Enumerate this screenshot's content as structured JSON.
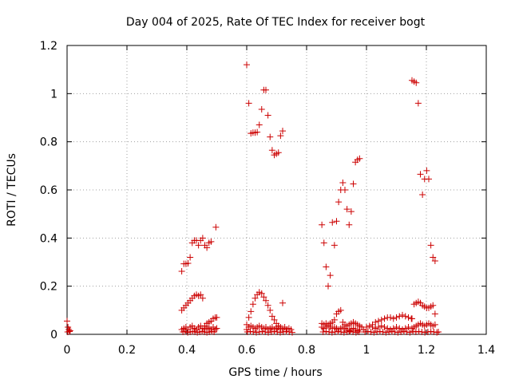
{
  "chart_data": {
    "type": "scatter",
    "title": "Day 004 of 2025, Rate Of TEC Index for receiver bogt",
    "xlabel": "GPS time / hours",
    "ylabel": "ROTI / TECUs",
    "xlim": [
      0,
      1.4
    ],
    "ylim": [
      0,
      1.2
    ],
    "x_ticks": [
      "0",
      "0.2",
      "0.4",
      "0.6",
      "0.8",
      "1",
      "1.2",
      "1.4"
    ],
    "y_ticks": [
      "0",
      "0.2",
      "0.4",
      "0.6",
      "0.8",
      "1",
      "1.2"
    ],
    "grid": true,
    "legend": "none",
    "marker": "plus",
    "colors": {
      "points": "#cc0000"
    },
    "series": [
      {
        "points": [
          [
            0.0,
            0.055
          ],
          [
            0.003,
            0.03
          ],
          [
            0.006,
            0.02
          ],
          [
            0.008,
            0.012
          ],
          [
            0.01,
            0.015
          ],
          [
            0.002,
            0.01
          ],
          [
            0.383,
            0.262
          ],
          [
            0.39,
            0.293
          ],
          [
            0.397,
            0.293
          ],
          [
            0.404,
            0.295
          ],
          [
            0.411,
            0.32
          ],
          [
            0.418,
            0.38
          ],
          [
            0.425,
            0.39
          ],
          [
            0.432,
            0.39
          ],
          [
            0.439,
            0.37
          ],
          [
            0.446,
            0.39
          ],
          [
            0.453,
            0.4
          ],
          [
            0.46,
            0.37
          ],
          [
            0.467,
            0.36
          ],
          [
            0.474,
            0.38
          ],
          [
            0.481,
            0.385
          ],
          [
            0.497,
            0.445
          ],
          [
            0.383,
            0.1
          ],
          [
            0.39,
            0.11
          ],
          [
            0.397,
            0.12
          ],
          [
            0.404,
            0.13
          ],
          [
            0.411,
            0.14
          ],
          [
            0.418,
            0.15
          ],
          [
            0.425,
            0.16
          ],
          [
            0.432,
            0.165
          ],
          [
            0.439,
            0.16
          ],
          [
            0.446,
            0.165
          ],
          [
            0.453,
            0.15
          ],
          [
            0.46,
            0.035
          ],
          [
            0.467,
            0.045
          ],
          [
            0.474,
            0.05
          ],
          [
            0.481,
            0.055
          ],
          [
            0.488,
            0.065
          ],
          [
            0.495,
            0.07
          ],
          [
            0.5,
            0.07
          ],
          [
            0.383,
            0.02
          ],
          [
            0.39,
            0.025
          ],
          [
            0.397,
            0.03
          ],
          [
            0.404,
            0.02
          ],
          [
            0.411,
            0.03
          ],
          [
            0.418,
            0.035
          ],
          [
            0.425,
            0.025
          ],
          [
            0.432,
            0.02
          ],
          [
            0.439,
            0.03
          ],
          [
            0.446,
            0.035
          ],
          [
            0.453,
            0.025
          ],
          [
            0.46,
            0.02
          ],
          [
            0.467,
            0.03
          ],
          [
            0.474,
            0.025
          ],
          [
            0.481,
            0.02
          ],
          [
            0.488,
            0.03
          ],
          [
            0.495,
            0.02
          ],
          [
            0.5,
            0.025
          ],
          [
            0.387,
            0.01
          ],
          [
            0.395,
            0.012
          ],
          [
            0.403,
            0.008
          ],
          [
            0.411,
            0.01
          ],
          [
            0.419,
            0.012
          ],
          [
            0.427,
            0.01
          ],
          [
            0.435,
            0.008
          ],
          [
            0.443,
            0.01
          ],
          [
            0.451,
            0.012
          ],
          [
            0.459,
            0.01
          ],
          [
            0.467,
            0.008
          ],
          [
            0.475,
            0.01
          ],
          [
            0.483,
            0.012
          ],
          [
            0.491,
            0.01
          ],
          [
            0.6,
            1.12
          ],
          [
            0.607,
            0.96
          ],
          [
            0.614,
            0.835
          ],
          [
            0.621,
            0.838
          ],
          [
            0.628,
            0.838
          ],
          [
            0.635,
            0.84
          ],
          [
            0.642,
            0.87
          ],
          [
            0.65,
            0.935
          ],
          [
            0.657,
            1.015
          ],
          [
            0.664,
            1.015
          ],
          [
            0.671,
            0.91
          ],
          [
            0.678,
            0.82
          ],
          [
            0.685,
            0.765
          ],
          [
            0.692,
            0.745
          ],
          [
            0.699,
            0.75
          ],
          [
            0.706,
            0.755
          ],
          [
            0.713,
            0.825
          ],
          [
            0.72,
            0.845
          ],
          [
            0.6,
            0.04
          ],
          [
            0.607,
            0.07
          ],
          [
            0.614,
            0.095
          ],
          [
            0.621,
            0.125
          ],
          [
            0.628,
            0.15
          ],
          [
            0.635,
            0.165
          ],
          [
            0.642,
            0.175
          ],
          [
            0.65,
            0.17
          ],
          [
            0.657,
            0.155
          ],
          [
            0.664,
            0.14
          ],
          [
            0.671,
            0.12
          ],
          [
            0.678,
            0.1
          ],
          [
            0.685,
            0.075
          ],
          [
            0.692,
            0.06
          ],
          [
            0.699,
            0.045
          ],
          [
            0.706,
            0.035
          ],
          [
            0.713,
            0.03
          ],
          [
            0.72,
            0.13
          ],
          [
            0.6,
            0.02
          ],
          [
            0.607,
            0.03
          ],
          [
            0.614,
            0.035
          ],
          [
            0.621,
            0.03
          ],
          [
            0.628,
            0.025
          ],
          [
            0.635,
            0.03
          ],
          [
            0.642,
            0.035
          ],
          [
            0.65,
            0.03
          ],
          [
            0.657,
            0.025
          ],
          [
            0.664,
            0.03
          ],
          [
            0.671,
            0.02
          ],
          [
            0.678,
            0.025
          ],
          [
            0.685,
            0.03
          ],
          [
            0.692,
            0.02
          ],
          [
            0.699,
            0.025
          ],
          [
            0.706,
            0.03
          ],
          [
            0.713,
            0.02
          ],
          [
            0.72,
            0.025
          ],
          [
            0.727,
            0.03
          ],
          [
            0.734,
            0.02
          ],
          [
            0.741,
            0.025
          ],
          [
            0.748,
            0.02
          ],
          [
            0.602,
            0.01
          ],
          [
            0.612,
            0.012
          ],
          [
            0.622,
            0.01
          ],
          [
            0.632,
            0.008
          ],
          [
            0.642,
            0.01
          ],
          [
            0.652,
            0.012
          ],
          [
            0.662,
            0.01
          ],
          [
            0.672,
            0.008
          ],
          [
            0.682,
            0.01
          ],
          [
            0.692,
            0.012
          ],
          [
            0.702,
            0.01
          ],
          [
            0.712,
            0.008
          ],
          [
            0.722,
            0.01
          ],
          [
            0.732,
            0.012
          ],
          [
            0.742,
            0.01
          ],
          [
            0.752,
            0.008
          ],
          [
            0.851,
            0.455
          ],
          [
            0.858,
            0.38
          ],
          [
            0.865,
            0.28
          ],
          [
            0.872,
            0.2
          ],
          [
            0.879,
            0.245
          ],
          [
            0.886,
            0.465
          ],
          [
            0.893,
            0.37
          ],
          [
            0.9,
            0.47
          ],
          [
            0.907,
            0.55
          ],
          [
            0.914,
            0.6
          ],
          [
            0.921,
            0.63
          ],
          [
            0.928,
            0.6
          ],
          [
            0.935,
            0.52
          ],
          [
            0.942,
            0.455
          ],
          [
            0.949,
            0.51
          ],
          [
            0.956,
            0.625
          ],
          [
            0.963,
            0.715
          ],
          [
            0.97,
            0.725
          ],
          [
            0.977,
            0.73
          ],
          [
            0.851,
            0.045
          ],
          [
            0.858,
            0.04
          ],
          [
            0.865,
            0.045
          ],
          [
            0.872,
            0.04
          ],
          [
            0.879,
            0.045
          ],
          [
            0.886,
            0.05
          ],
          [
            0.893,
            0.06
          ],
          [
            0.9,
            0.085
          ],
          [
            0.907,
            0.095
          ],
          [
            0.914,
            0.1
          ],
          [
            0.921,
            0.05
          ],
          [
            0.928,
            0.04
          ],
          [
            0.935,
            0.035
          ],
          [
            0.942,
            0.04
          ],
          [
            0.949,
            0.045
          ],
          [
            0.956,
            0.05
          ],
          [
            0.963,
            0.045
          ],
          [
            0.97,
            0.04
          ],
          [
            0.977,
            0.035
          ],
          [
            0.984,
            0.03
          ],
          [
            0.851,
            0.03
          ],
          [
            0.858,
            0.025
          ],
          [
            0.865,
            0.03
          ],
          [
            0.872,
            0.035
          ],
          [
            0.879,
            0.03
          ],
          [
            0.886,
            0.025
          ],
          [
            0.893,
            0.03
          ],
          [
            0.9,
            0.025
          ],
          [
            0.907,
            0.02
          ],
          [
            0.914,
            0.025
          ],
          [
            0.921,
            0.03
          ],
          [
            0.928,
            0.025
          ],
          [
            0.935,
            0.02
          ],
          [
            0.942,
            0.015
          ],
          [
            0.949,
            0.02
          ],
          [
            0.956,
            0.025
          ],
          [
            0.963,
            0.02
          ],
          [
            0.97,
            0.015
          ],
          [
            0.977,
            0.02
          ],
          [
            0.855,
            0.01
          ],
          [
            0.865,
            0.012
          ],
          [
            0.875,
            0.01
          ],
          [
            0.885,
            0.008
          ],
          [
            0.895,
            0.01
          ],
          [
            0.905,
            0.012
          ],
          [
            0.915,
            0.01
          ],
          [
            0.925,
            0.008
          ],
          [
            0.935,
            0.01
          ],
          [
            0.945,
            0.012
          ],
          [
            0.955,
            0.01
          ],
          [
            0.965,
            0.008
          ],
          [
            0.975,
            0.01
          ],
          [
            0.99,
            0.02
          ],
          [
            1.0,
            0.03
          ],
          [
            1.01,
            0.035
          ],
          [
            1.02,
            0.03
          ],
          [
            1.03,
            0.025
          ],
          [
            1.04,
            0.03
          ],
          [
            1.05,
            0.035
          ],
          [
            1.06,
            0.03
          ],
          [
            1.07,
            0.025
          ],
          [
            1.08,
            0.02
          ],
          [
            1.09,
            0.025
          ],
          [
            1.1,
            0.03
          ],
          [
            1.11,
            0.025
          ],
          [
            1.12,
            0.02
          ],
          [
            1.13,
            0.025
          ],
          [
            1.14,
            0.03
          ],
          [
            1.02,
            0.04
          ],
          [
            1.03,
            0.05
          ],
          [
            1.04,
            0.055
          ],
          [
            1.05,
            0.06
          ],
          [
            1.06,
            0.065
          ],
          [
            1.07,
            0.07
          ],
          [
            1.08,
            0.07
          ],
          [
            1.09,
            0.065
          ],
          [
            1.1,
            0.07
          ],
          [
            1.11,
            0.075
          ],
          [
            1.12,
            0.08
          ],
          [
            1.13,
            0.075
          ],
          [
            1.14,
            0.07
          ],
          [
            1.15,
            0.065
          ],
          [
            0.995,
            0.01
          ],
          [
            1.005,
            0.012
          ],
          [
            1.015,
            0.01
          ],
          [
            1.025,
            0.008
          ],
          [
            1.035,
            0.01
          ],
          [
            1.045,
            0.012
          ],
          [
            1.055,
            0.01
          ],
          [
            1.065,
            0.008
          ],
          [
            1.075,
            0.01
          ],
          [
            1.085,
            0.012
          ],
          [
            1.095,
            0.01
          ],
          [
            1.105,
            0.008
          ],
          [
            1.115,
            0.01
          ],
          [
            1.125,
            0.012
          ],
          [
            1.135,
            0.01
          ],
          [
            1.145,
            0.008
          ],
          [
            1.152,
            1.055
          ],
          [
            1.159,
            1.05
          ],
          [
            1.166,
            1.045
          ],
          [
            1.173,
            0.96
          ],
          [
            1.18,
            0.665
          ],
          [
            1.187,
            0.58
          ],
          [
            1.194,
            0.645
          ],
          [
            1.201,
            0.68
          ],
          [
            1.208,
            0.645
          ],
          [
            1.215,
            0.37
          ],
          [
            1.222,
            0.32
          ],
          [
            1.229,
            0.305
          ],
          [
            1.152,
            0.065
          ],
          [
            1.159,
            0.125
          ],
          [
            1.166,
            0.13
          ],
          [
            1.173,
            0.135
          ],
          [
            1.18,
            0.13
          ],
          [
            1.187,
            0.12
          ],
          [
            1.194,
            0.115
          ],
          [
            1.201,
            0.11
          ],
          [
            1.208,
            0.11
          ],
          [
            1.215,
            0.115
          ],
          [
            1.222,
            0.12
          ],
          [
            1.229,
            0.085
          ],
          [
            1.152,
            0.025
          ],
          [
            1.159,
            0.03
          ],
          [
            1.166,
            0.035
          ],
          [
            1.173,
            0.04
          ],
          [
            1.18,
            0.045
          ],
          [
            1.187,
            0.04
          ],
          [
            1.194,
            0.035
          ],
          [
            1.201,
            0.04
          ],
          [
            1.208,
            0.045
          ],
          [
            1.215,
            0.04
          ],
          [
            1.222,
            0.035
          ],
          [
            1.229,
            0.04
          ],
          [
            1.155,
            0.012
          ],
          [
            1.165,
            0.01
          ],
          [
            1.175,
            0.012
          ],
          [
            1.185,
            0.01
          ],
          [
            1.195,
            0.008
          ],
          [
            1.205,
            0.01
          ],
          [
            1.215,
            0.012
          ],
          [
            1.225,
            0.01
          ],
          [
            1.235,
            0.008
          ],
          [
            1.24,
            0.01
          ]
        ]
      }
    ]
  }
}
